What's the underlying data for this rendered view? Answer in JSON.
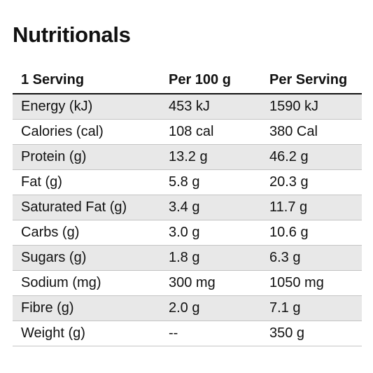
{
  "title": "Nutritionals",
  "columns": [
    "1 Serving",
    "Per 100 g",
    "Per Serving"
  ],
  "rows": [
    [
      "Energy (kJ)",
      "453 kJ",
      "1590 kJ"
    ],
    [
      "Calories (cal)",
      "108 cal",
      "380 Cal"
    ],
    [
      "Protein (g)",
      "13.2 g",
      "46.2 g"
    ],
    [
      "Fat (g)",
      "5.8 g",
      "20.3 g"
    ],
    [
      "Saturated Fat (g)",
      "3.4 g",
      "11.7 g"
    ],
    [
      "Carbs (g)",
      "3.0 g",
      "10.6 g"
    ],
    [
      "Sugars (g)",
      "1.8 g",
      "6.3 g"
    ],
    [
      "Sodium (mg)",
      "300 mg",
      "1050 mg"
    ],
    [
      "Fibre (g)",
      "2.0 g",
      "7.1 g"
    ],
    [
      "Weight (g)",
      "--",
      "350 g"
    ]
  ],
  "colors": {
    "text": "#111111",
    "shaded_row": "#e8e8e8",
    "divider": "#c4c4c4"
  }
}
